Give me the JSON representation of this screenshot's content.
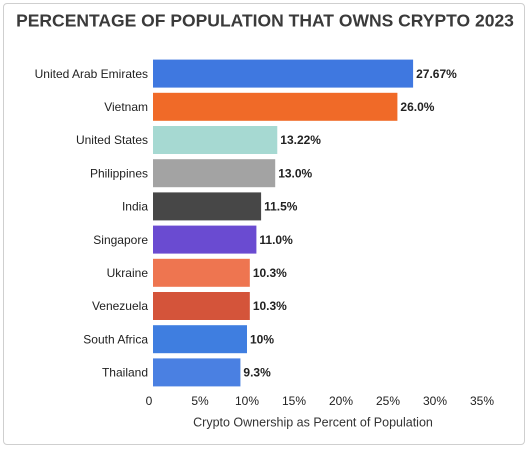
{
  "chart_data": {
    "type": "bar",
    "orientation": "horizontal",
    "title": "PERCENTAGE OF POPULATION THAT OWNS CRYPTO 2023",
    "categories": [
      "United Arab Emirates",
      "Vietnam",
      "United States",
      "Philippines",
      "India",
      "Singapore",
      "Ukraine",
      "Venezuela",
      "South Africa",
      "Thailand"
    ],
    "values": [
      27.67,
      26.0,
      13.22,
      13.0,
      11.5,
      11.0,
      10.3,
      10.3,
      10,
      9.3
    ],
    "value_labels": [
      "27.67%",
      "26.0%",
      "13.22%",
      "13.0%",
      "11.5%",
      "11.0%",
      "10.3%",
      "10.3%",
      "10%",
      "9.3%"
    ],
    "colors": [
      "#3f78e0",
      "#f06a28",
      "#a6d9d2",
      "#a3a3a3",
      "#474747",
      "#6a4bd1",
      "#ee7550",
      "#d4543a",
      "#3f7ee0",
      "#4a80e2"
    ],
    "xlabel": "Crypto Ownership as Percent of Population",
    "xlim": [
      0,
      35
    ],
    "xticks": [
      0,
      {
        "value": 5,
        "label": "5%"
      },
      {
        "value": 10,
        "label": "10%"
      },
      {
        "value": 15,
        "label": "15%"
      },
      {
        "value": 20,
        "label": "20%"
      },
      {
        "value": 25,
        "label": "25%"
      },
      {
        "value": 30,
        "label": "30%"
      },
      {
        "value": 35,
        "label": "35%"
      }
    ],
    "grid": false
  }
}
